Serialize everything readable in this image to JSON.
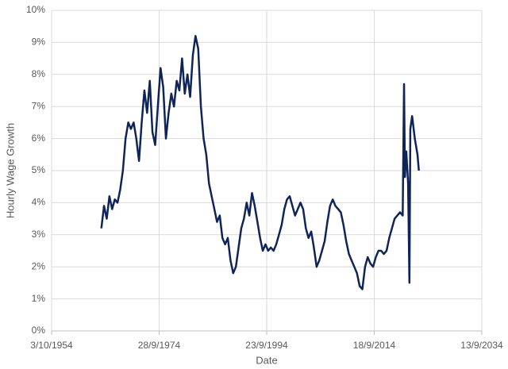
{
  "chart_data": {
    "type": "line",
    "x_label": "Date",
    "y_label": "Hourly Wage Growth",
    "x": [
      "1964-01",
      "1964-07",
      "1965-01",
      "1965-07",
      "1966-01",
      "1966-07",
      "1967-01",
      "1967-07",
      "1968-01",
      "1968-07",
      "1969-01",
      "1969-07",
      "1970-01",
      "1970-07",
      "1971-01",
      "1971-07",
      "1972-01",
      "1972-07",
      "1973-01",
      "1973-07",
      "1974-01",
      "1974-07",
      "1975-01",
      "1975-07",
      "1976-01",
      "1976-07",
      "1977-01",
      "1977-07",
      "1978-01",
      "1978-07",
      "1979-01",
      "1979-07",
      "1980-01",
      "1980-07",
      "1981-01",
      "1981-07",
      "1982-01",
      "1982-07",
      "1983-01",
      "1983-07",
      "1984-01",
      "1984-07",
      "1985-01",
      "1985-07",
      "1986-01",
      "1986-07",
      "1987-01",
      "1987-07",
      "1988-01",
      "1988-07",
      "1989-01",
      "1989-07",
      "1990-01",
      "1990-07",
      "1991-01",
      "1991-07",
      "1992-01",
      "1992-07",
      "1993-01",
      "1993-07",
      "1994-01",
      "1994-07",
      "1995-01",
      "1995-07",
      "1996-01",
      "1996-07",
      "1997-01",
      "1997-07",
      "1998-01",
      "1998-07",
      "1999-01",
      "1999-07",
      "2000-01",
      "2000-07",
      "2001-01",
      "2001-07",
      "2002-01",
      "2002-07",
      "2003-01",
      "2003-07",
      "2004-01",
      "2004-07",
      "2005-01",
      "2005-07",
      "2006-01",
      "2006-07",
      "2007-01",
      "2007-07",
      "2008-01",
      "2008-07",
      "2009-01",
      "2009-07",
      "2010-01",
      "2010-07",
      "2011-01",
      "2011-07",
      "2012-01",
      "2012-07",
      "2013-01",
      "2013-07",
      "2014-01",
      "2014-07",
      "2015-01",
      "2015-07",
      "2016-01",
      "2016-07",
      "2017-01",
      "2017-07",
      "2018-01",
      "2018-07",
      "2019-01",
      "2019-07",
      "2020-01",
      "2020-04",
      "2020-06",
      "2020-09",
      "2021-01",
      "2021-04",
      "2021-06",
      "2021-10",
      "2022-04",
      "2022-10",
      "2023-01"
    ],
    "series": [
      {
        "name": "Hourly Wage Growth",
        "color": "#0f2459",
        "values": [
          3.2,
          3.9,
          3.5,
          4.2,
          3.8,
          4.1,
          4.0,
          4.4,
          5.0,
          6.0,
          6.5,
          6.3,
          6.5,
          6.0,
          5.3,
          6.5,
          7.5,
          6.8,
          7.8,
          6.2,
          5.8,
          7.0,
          8.2,
          7.6,
          6.0,
          6.8,
          7.4,
          7.0,
          7.8,
          7.5,
          8.5,
          7.4,
          8.0,
          7.3,
          8.6,
          9.2,
          8.8,
          7.0,
          6.0,
          5.5,
          4.6,
          4.2,
          3.8,
          3.4,
          3.6,
          2.9,
          2.7,
          2.9,
          2.2,
          1.8,
          2.0,
          2.6,
          3.2,
          3.5,
          4.0,
          3.6,
          4.3,
          3.9,
          3.4,
          2.9,
          2.5,
          2.7,
          2.5,
          2.6,
          2.5,
          2.7,
          3.0,
          3.3,
          3.8,
          4.1,
          4.2,
          3.9,
          3.6,
          3.8,
          4.0,
          3.8,
          3.2,
          2.9,
          3.1,
          2.6,
          2.0,
          2.2,
          2.5,
          2.8,
          3.4,
          3.9,
          4.1,
          3.9,
          3.8,
          3.7,
          3.3,
          2.8,
          2.4,
          2.2,
          2.0,
          1.8,
          1.4,
          1.3,
          2.0,
          2.3,
          2.1,
          2.0,
          2.3,
          2.5,
          2.5,
          2.4,
          2.5,
          2.9,
          3.2,
          3.5,
          3.6,
          3.7,
          3.6,
          7.7,
          4.8,
          5.6,
          4.6,
          1.5,
          6.3,
          6.7,
          6.0,
          5.5,
          5.0
        ]
      }
    ],
    "xlim": [
      "1954-10-03",
      "2034-09-13"
    ],
    "xticks": [
      {
        "value": "1954-10-03",
        "label": "3/10/1954"
      },
      {
        "value": "1974-09-28",
        "label": "28/9/1974"
      },
      {
        "value": "1994-09-23",
        "label": "23/9/1994"
      },
      {
        "value": "2014-09-18",
        "label": "18/9/2014"
      },
      {
        "value": "2034-09-13",
        "label": "13/9/2034"
      }
    ],
    "ylim": [
      0,
      10
    ],
    "yticks": [
      {
        "value": 0,
        "label": "0%"
      },
      {
        "value": 1,
        "label": "1%"
      },
      {
        "value": 2,
        "label": "2%"
      },
      {
        "value": 3,
        "label": "3%"
      },
      {
        "value": 4,
        "label": "4%"
      },
      {
        "value": 5,
        "label": "5%"
      },
      {
        "value": 6,
        "label": "6%"
      },
      {
        "value": 7,
        "label": "7%"
      },
      {
        "value": 8,
        "label": "8%"
      },
      {
        "value": 9,
        "label": "9%"
      },
      {
        "value": 10,
        "label": "10%"
      }
    ],
    "grid": true
  }
}
